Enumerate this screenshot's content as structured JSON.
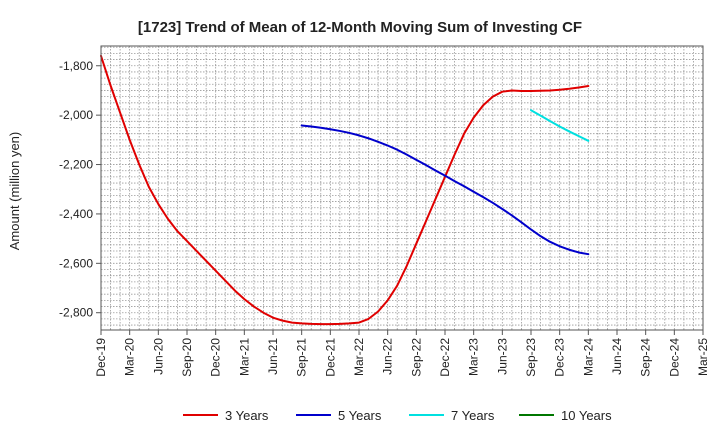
{
  "chart_data": {
    "type": "line",
    "title": "[1723]  Trend of Mean of 12-Month Moving Sum of Investing CF",
    "xlabel": "",
    "ylabel": "Amount (million yen)",
    "ylim": [
      -2870,
      -1720
    ],
    "yticks": [
      -1800,
      -2000,
      -2200,
      -2400,
      -2600,
      -2800
    ],
    "ytick_labels": [
      "-1,800",
      "-2,000",
      "-2,200",
      "-2,400",
      "-2,600",
      "-2,800"
    ],
    "x_range": [
      "2019-12",
      "2025-03"
    ],
    "xtick_labels": [
      "Dec-19",
      "Mar-20",
      "Jun-20",
      "Sep-20",
      "Dec-20",
      "Mar-21",
      "Jun-21",
      "Sep-21",
      "Dec-21",
      "Mar-22",
      "Jun-22",
      "Sep-22",
      "Dec-22",
      "Mar-23",
      "Jun-23",
      "Sep-23",
      "Dec-23",
      "Mar-24",
      "Jun-24",
      "Sep-24",
      "Dec-24",
      "Mar-25"
    ],
    "grid": true,
    "legend_position": "bottom",
    "series": [
      {
        "name": "3 Years",
        "color": "#e00000",
        "x": [
          "2019-12",
          "2020-01",
          "2020-02",
          "2020-03",
          "2020-04",
          "2020-05",
          "2020-06",
          "2020-07",
          "2020-08",
          "2020-09",
          "2020-10",
          "2020-11",
          "2020-12",
          "2021-01",
          "2021-02",
          "2021-03",
          "2021-04",
          "2021-05",
          "2021-06",
          "2021-07",
          "2021-08",
          "2021-09",
          "2021-10",
          "2021-11",
          "2021-12",
          "2022-01",
          "2022-02",
          "2022-03",
          "2022-04",
          "2022-05",
          "2022-06",
          "2022-07",
          "2022-08",
          "2022-09",
          "2022-10",
          "2022-11",
          "2022-12",
          "2023-01",
          "2023-02",
          "2023-03",
          "2023-04",
          "2023-05",
          "2023-06",
          "2023-07",
          "2023-08",
          "2023-09",
          "2023-10",
          "2023-11",
          "2023-12",
          "2024-01",
          "2024-02",
          "2024-03"
        ],
        "values": [
          -1760,
          -1880,
          -1990,
          -2100,
          -2200,
          -2290,
          -2360,
          -2420,
          -2470,
          -2510,
          -2550,
          -2590,
          -2630,
          -2670,
          -2710,
          -2745,
          -2775,
          -2800,
          -2820,
          -2832,
          -2840,
          -2843,
          -2845,
          -2846,
          -2846,
          -2845,
          -2843,
          -2840,
          -2825,
          -2795,
          -2750,
          -2690,
          -2610,
          -2520,
          -2430,
          -2340,
          -2250,
          -2160,
          -2075,
          -2010,
          -1960,
          -1925,
          -1905,
          -1900,
          -1902,
          -1902,
          -1901,
          -1900,
          -1897,
          -1893,
          -1888,
          -1882
        ]
      },
      {
        "name": "5 Years",
        "color": "#0000cc",
        "x": [
          "2021-09",
          "2021-10",
          "2021-11",
          "2021-12",
          "2022-01",
          "2022-02",
          "2022-03",
          "2022-04",
          "2022-05",
          "2022-06",
          "2022-07",
          "2022-08",
          "2022-09",
          "2022-10",
          "2022-11",
          "2022-12",
          "2023-01",
          "2023-02",
          "2023-03",
          "2023-04",
          "2023-05",
          "2023-06",
          "2023-07",
          "2023-08",
          "2023-09",
          "2023-10",
          "2023-11",
          "2023-12",
          "2024-01",
          "2024-02",
          "2024-03"
        ],
        "values": [
          -2042,
          -2046,
          -2051,
          -2057,
          -2064,
          -2072,
          -2082,
          -2094,
          -2108,
          -2123,
          -2140,
          -2160,
          -2181,
          -2202,
          -2224,
          -2245,
          -2267,
          -2288,
          -2310,
          -2332,
          -2355,
          -2380,
          -2406,
          -2434,
          -2463,
          -2490,
          -2513,
          -2531,
          -2545,
          -2556,
          -2563
        ]
      },
      {
        "name": "7 Years",
        "color": "#00e0e0",
        "x": [
          "2023-09",
          "2023-10",
          "2023-11",
          "2023-12",
          "2024-01",
          "2024-02",
          "2024-03"
        ],
        "values": [
          -1980,
          -2002,
          -2024,
          -2046,
          -2066,
          -2085,
          -2104
        ]
      },
      {
        "name": "10 Years",
        "color": "#007700",
        "x": [],
        "values": []
      }
    ]
  }
}
